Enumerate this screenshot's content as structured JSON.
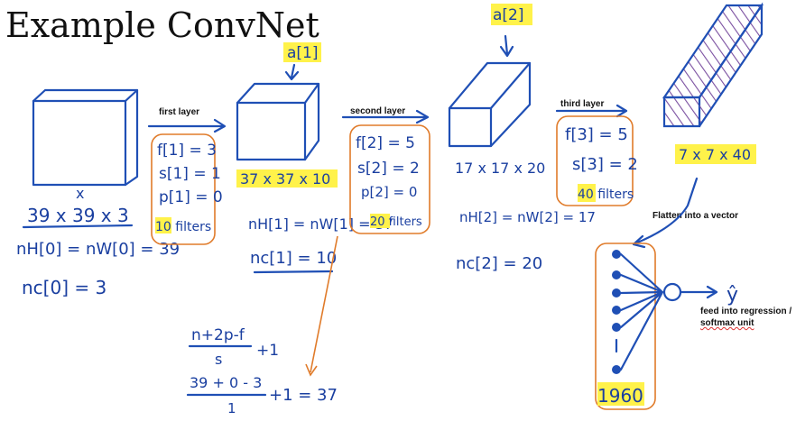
{
  "title": "Example ConvNet",
  "labels": {
    "first_layer": "first layer",
    "second_layer": "second layer",
    "third_layer": "third layer",
    "flatten": "Flatten into a vector",
    "feed": "feed into regression /",
    "softmax": "softmax unit"
  },
  "input": {
    "x": "x",
    "dims": "39 x 39 x 3",
    "nh": "nH[0] = nW[0] = 39",
    "nc": "nc[0] = 3"
  },
  "layer1": {
    "f": "f[1] = 3",
    "s": "s[1] = 1",
    "p": "p[1] = 0",
    "filters": "10 filters",
    "activation": "a[1]",
    "output": "37 x 37 x 10",
    "nh": "nH[1] = nW[1] = 37",
    "nc": "nc[1] = 10"
  },
  "layer2": {
    "f": "f[2] = 5",
    "s": "s[2] = 2",
    "p": "p[2] = 0",
    "filters": "20 filters",
    "activation": "a[2]",
    "output": "17 x 17 x 20",
    "nh": "nH[2] = nW[2] = 17",
    "nc": "nc[2] = 20"
  },
  "layer3": {
    "f": "f[3] = 5",
    "s": "s[3] = 2",
    "filters": "40 filters",
    "output": "7 x 7 x 40"
  },
  "formula": {
    "general_num": "n+2p-f",
    "general_den": "s",
    "general_plus": "+1",
    "worked_num": "39 + 0 - 3",
    "worked_den": "1",
    "worked_result": "+1 = 37"
  },
  "flatten_count": "1960",
  "output_label": "ŷ",
  "colors": {
    "ink": "#1f4fb5",
    "box": "#e07b2a",
    "highlight": "#fff24a",
    "hatch": "#7a4fa0"
  }
}
